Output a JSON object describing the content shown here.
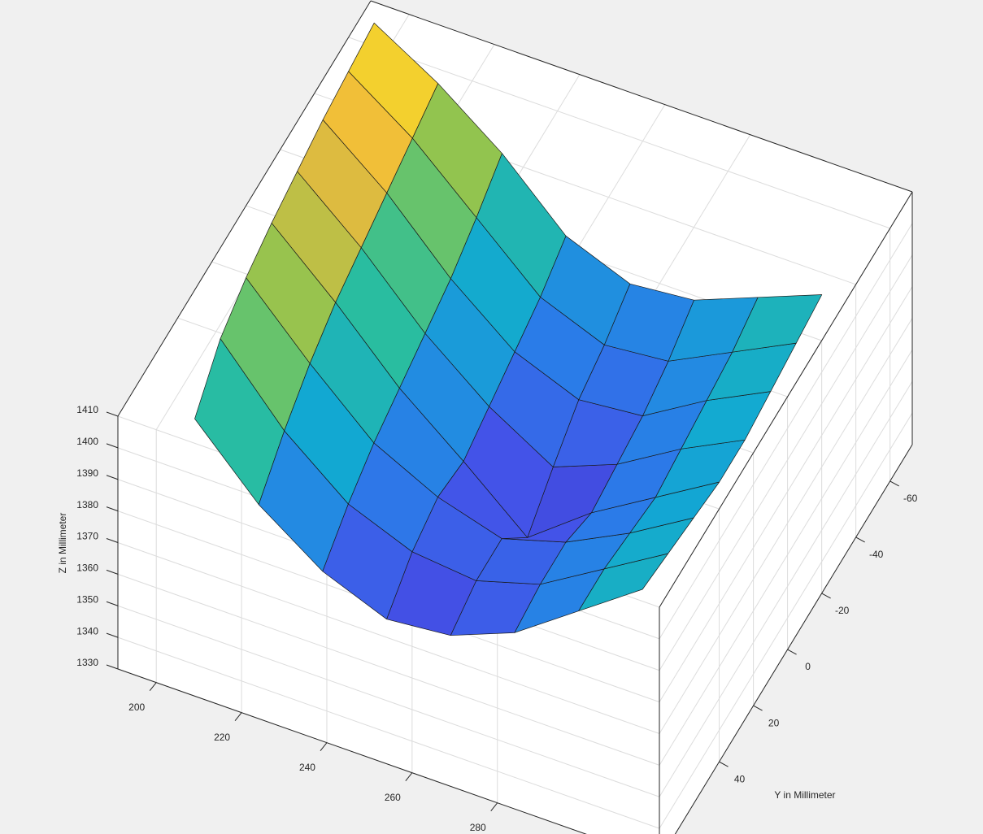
{
  "chart_data": {
    "type": "surface",
    "ylabel": "Y in Millimeter",
    "zlabel": "Z in Millimeter",
    "x": [
      195,
      210,
      225,
      240,
      255,
      270,
      285,
      300
    ],
    "y": [
      -65,
      -50,
      -35,
      -20,
      -5,
      10,
      25,
      40
    ],
    "z": [
      [
        1412,
        1400,
        1385,
        1366,
        1358,
        1360,
        1368,
        1376
      ],
      [
        1410,
        1396,
        1378,
        1360,
        1352,
        1354,
        1364,
        1374
      ],
      [
        1408,
        1392,
        1372,
        1356,
        1348,
        1350,
        1362,
        1372
      ],
      [
        1405,
        1388,
        1368,
        1352,
        1340,
        1348,
        1360,
        1370
      ],
      [
        1402,
        1384,
        1364,
        1348,
        1331,
        1346,
        1358,
        1370
      ],
      [
        1398,
        1378,
        1360,
        1350,
        1344,
        1350,
        1360,
        1372
      ],
      [
        1392,
        1370,
        1354,
        1346,
        1344,
        1350,
        1362,
        1374
      ],
      [
        1380,
        1360,
        1346,
        1338,
        1340,
        1348,
        1362,
        1376
      ]
    ],
    "xlim": [
      191,
      318
    ],
    "ylim": [
      -73,
      75
    ],
    "zlim": [
      1330,
      1410
    ],
    "xticks": [
      200,
      220,
      240,
      260,
      280
    ],
    "yticks": [
      -60,
      -40,
      -20,
      0,
      20,
      40
    ],
    "zticks": [
      1330,
      1340,
      1350,
      1360,
      1370,
      1380,
      1390,
      1400,
      1410
    ],
    "grid": true,
    "colormap": [
      "#3e26a8",
      "#4352e8",
      "#2a7de8",
      "#12a9d2",
      "#2cbf9a",
      "#8ac551",
      "#f0b93c",
      "#f9fb15"
    ],
    "edge_color": "#1a1a1a"
  }
}
